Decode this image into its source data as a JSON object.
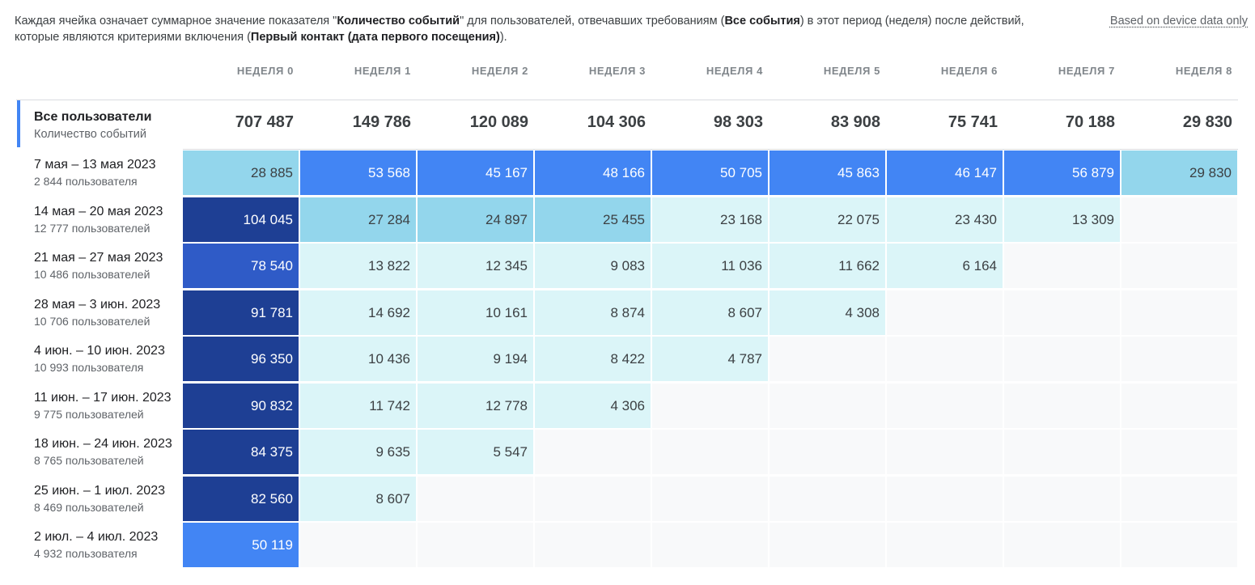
{
  "header": {
    "desc_pre": "Каждая ячейка означает суммарное значение показателя \"",
    "metric": "Количество событий",
    "desc_mid1": "\" для пользователей, отвечавших требованиям (",
    "segment": "Все события",
    "desc_mid2": ") в этот период (неделя) после действий, которые являются критериями включения (",
    "criteria": "Первый контакт (дата первого посещения)",
    "desc_end": ").",
    "device_link": "Based on device data only"
  },
  "weeks": [
    "НЕДЕЛЯ 0",
    "НЕДЕЛЯ 1",
    "НЕДЕЛЯ 2",
    "НЕДЕЛЯ 3",
    "НЕДЕЛЯ 4",
    "НЕДЕЛЯ 5",
    "НЕДЕЛЯ 6",
    "НЕДЕЛЯ 7",
    "НЕДЕЛЯ 8"
  ],
  "totals": {
    "title": "Все пользователи",
    "subtitle": "Количество событий",
    "values": [
      "707 487",
      "149 786",
      "120 089",
      "104 306",
      "98 303",
      "83 908",
      "75 741",
      "70 188",
      "29 830"
    ]
  },
  "rows": [
    {
      "date": "7 мая – 13 мая 2023",
      "users": "2 844 пользователя",
      "cells": [
        "28 885",
        "53 568",
        "45 167",
        "48 166",
        "50 705",
        "45 863",
        "46 147",
        "56 879",
        "29 830"
      ],
      "levels": [
        2,
        3,
        3,
        3,
        3,
        3,
        3,
        3,
        2
      ]
    },
    {
      "date": "14 мая – 20 мая 2023",
      "users": "12 777 пользователей",
      "cells": [
        "104 045",
        "27 284",
        "24 897",
        "25 455",
        "23 168",
        "22 075",
        "23 430",
        "13 309",
        ""
      ],
      "levels": [
        5,
        2,
        2,
        2,
        1,
        1,
        1,
        1,
        0
      ]
    },
    {
      "date": "21 мая – 27 мая 2023",
      "users": "10 486 пользователей",
      "cells": [
        "78 540",
        "13 822",
        "12 345",
        "9 083",
        "11 036",
        "11 662",
        "6 164",
        "",
        ""
      ],
      "levels": [
        4,
        1,
        1,
        1,
        1,
        1,
        1,
        0,
        0
      ]
    },
    {
      "date": "28 мая – 3 июн. 2023",
      "users": "10 706 пользователей",
      "cells": [
        "91 781",
        "14 692",
        "10 161",
        "8 874",
        "8 607",
        "4 308",
        "",
        "",
        ""
      ],
      "levels": [
        5,
        1,
        1,
        1,
        1,
        1,
        0,
        0,
        0
      ]
    },
    {
      "date": "4 июн. – 10 июн. 2023",
      "users": "10 993 пользователя",
      "cells": [
        "96 350",
        "10 436",
        "9 194",
        "8 422",
        "4 787",
        "",
        "",
        "",
        ""
      ],
      "levels": [
        5,
        1,
        1,
        1,
        1,
        0,
        0,
        0,
        0
      ]
    },
    {
      "date": "11 июн. – 17 июн. 2023",
      "users": "9 775 пользователей",
      "cells": [
        "90 832",
        "11 742",
        "12 778",
        "4 306",
        "",
        "",
        "",
        "",
        ""
      ],
      "levels": [
        5,
        1,
        1,
        1,
        0,
        0,
        0,
        0,
        0
      ]
    },
    {
      "date": "18 июн. – 24 июн. 2023",
      "users": "8 765 пользователей",
      "cells": [
        "84 375",
        "9 635",
        "5 547",
        "",
        "",
        "",
        "",
        "",
        ""
      ],
      "levels": [
        5,
        1,
        1,
        0,
        0,
        0,
        0,
        0,
        0
      ]
    },
    {
      "date": "25 июн. – 1 июл. 2023",
      "users": "8 469 пользователей",
      "cells": [
        "82 560",
        "8 607",
        "",
        "",
        "",
        "",
        "",
        "",
        ""
      ],
      "levels": [
        5,
        1,
        0,
        0,
        0,
        0,
        0,
        0,
        0
      ]
    },
    {
      "date": "2 июл. – 4 июл. 2023",
      "users": "4 932 пользователя",
      "cells": [
        "50 119",
        "",
        "",
        "",
        "",
        "",
        "",
        "",
        ""
      ],
      "levels": [
        3,
        0,
        0,
        0,
        0,
        0,
        0,
        0,
        0
      ]
    }
  ]
}
